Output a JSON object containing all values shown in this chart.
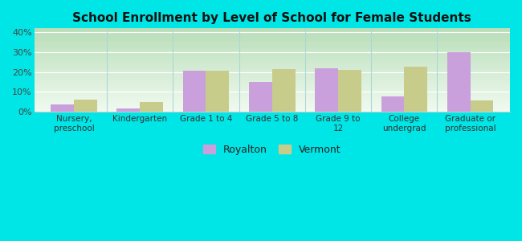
{
  "title": "School Enrollment by Level of School for Female Students",
  "categories": [
    "Nursery,\npreschool",
    "Kindergarten",
    "Grade 1 to 4",
    "Grade 5 to 8",
    "Grade 9 to\n12",
    "College\nundergrad",
    "Graduate or\nprofessional"
  ],
  "royalton": [
    3.5,
    1.5,
    20.5,
    15.0,
    22.0,
    7.5,
    30.0
  ],
  "vermont": [
    6.0,
    5.0,
    20.5,
    21.5,
    21.0,
    22.5,
    5.5
  ],
  "royalton_color": "#c9a0dc",
  "vermont_color": "#c8cc8a",
  "background_color": "#00e5e5",
  "grad_top": "#b8ddb8",
  "grad_bottom": "#f0faf0",
  "ylim": [
    0,
    42
  ],
  "yticks": [
    0,
    10,
    20,
    30,
    40
  ],
  "ytick_labels": [
    "0%",
    "10%",
    "20%",
    "30%",
    "40%"
  ],
  "legend_royalton": "Royalton",
  "legend_vermont": "Vermont",
  "bar_width": 0.35
}
